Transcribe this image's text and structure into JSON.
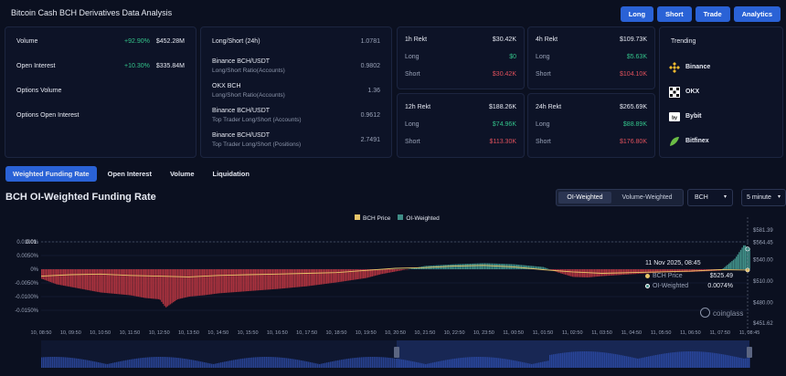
{
  "header": {
    "title": "Bitcoin Cash BCH Derivatives Data Analysis",
    "buttons": [
      "Long",
      "Short",
      "Trade",
      "Analytics"
    ]
  },
  "overview": {
    "rows": [
      {
        "label": "Volume",
        "change": "+92.90%",
        "value": "$452.28M"
      },
      {
        "label": "Open Interest",
        "change": "+10.30%",
        "value": "$335.84M"
      },
      {
        "label": "Options Volume",
        "change": "",
        "value": ""
      },
      {
        "label": "Options Open Interest",
        "change": "",
        "value": ""
      }
    ]
  },
  "ratios": {
    "rows": [
      {
        "label": "Long/Short (24h)",
        "sub": "",
        "value": "1.0781"
      },
      {
        "label": "Binance BCH/USDT",
        "sub": "Long/Short Ratio(Accounts)",
        "value": "0.9802"
      },
      {
        "label": "OKX BCH",
        "sub": "Long/Short Ratio(Accounts)",
        "value": "1.36"
      },
      {
        "label": "Binance BCH/USDT",
        "sub": "Top Trader Long/Short (Accounts)",
        "value": "0.9612"
      },
      {
        "label": "Binance BCH/USDT",
        "sub": "Top Trader Long/Short (Positions)",
        "value": "2.7491"
      }
    ]
  },
  "rekt": [
    {
      "title": "1h Rekt",
      "total": "$30.42K",
      "long_label": "Long",
      "long": "$0",
      "short_label": "Short",
      "short": "$30.42K"
    },
    {
      "title": "4h Rekt",
      "total": "$109.73K",
      "long_label": "Long",
      "long": "$5.63K",
      "short_label": "Short",
      "short": "$104.10K"
    },
    {
      "title": "12h Rekt",
      "total": "$188.26K",
      "long_label": "Long",
      "long": "$74.96K",
      "short_label": "Short",
      "short": "$113.30K"
    },
    {
      "title": "24h Rekt",
      "total": "$265.69K",
      "long_label": "Long",
      "long": "$88.89K",
      "short_label": "Short",
      "short": "$176.80K"
    }
  ],
  "trending": {
    "title": "Trending",
    "items": [
      {
        "name": "Binance",
        "icon": "binance-icon",
        "color": "#f3ba2f"
      },
      {
        "name": "OKX",
        "icon": "okx-icon",
        "color": "#ffffff"
      },
      {
        "name": "Bybit",
        "icon": "bybit-icon",
        "color": "#ffffff"
      },
      {
        "name": "Bitfinex",
        "icon": "bitfinex-icon",
        "color": "#6bbd45"
      }
    ]
  },
  "tabs": [
    "Weighted Funding Rate",
    "Open Interest",
    "Volume",
    "Liquidation"
  ],
  "chart_header": {
    "title": "BCH OI-Weighted Funding Rate",
    "toggle": [
      "OI-Weighted",
      "Volume-Weighted"
    ],
    "coin": "BCH",
    "interval": "5 minute"
  },
  "chart_data": {
    "type": "area",
    "legend": [
      "BCH Price",
      "OI-Weighted"
    ],
    "x_ticks": [
      "10, 08:50",
      "10, 09:50",
      "10, 10:50",
      "10, 11:50",
      "10, 12:50",
      "10, 13:50",
      "10, 14:50",
      "10, 15:50",
      "10, 16:50",
      "10, 17:50",
      "10, 18:50",
      "10, 19:50",
      "10, 20:50",
      "10, 21:50",
      "10, 22:50",
      "10, 23:50",
      "11, 00:50",
      "11, 01:50",
      "11, 02:50",
      "11, 03:50",
      "11, 04:50",
      "11, 05:50",
      "11, 06:50",
      "11, 07:50",
      "11, 08:45"
    ],
    "y_left_ticks": [
      "0.0100%",
      "0.01",
      "0.0050%",
      "0%",
      "-0.0050%",
      "-0.0100%",
      "-0.0150%"
    ],
    "y_left_values": [
      0.01,
      0.01,
      0.005,
      0,
      -0.005,
      -0.01,
      -0.015
    ],
    "y_right_ticks": [
      "$581.39",
      "$564.45",
      "$540.00",
      "$510.00",
      "$480.00",
      "$451.62"
    ],
    "y_right_values": [
      581.39,
      564.45,
      540,
      510,
      480,
      451.62
    ],
    "funding_series": {
      "name": "OI-Weighted",
      "x_hours": [
        0,
        0.5,
        1,
        1.5,
        2,
        2.5,
        3,
        3.5,
        4,
        4.2,
        4.4,
        4.6,
        5,
        5.5,
        6,
        7,
        8,
        9,
        10,
        11,
        11.5,
        12,
        12.5,
        13,
        14,
        15,
        16,
        17,
        17.5,
        18,
        18.5,
        19,
        20,
        20.5,
        21,
        22,
        23,
        23.5,
        23.8,
        24
      ],
      "values": [
        -0.0035,
        -0.0055,
        -0.0065,
        -0.0075,
        -0.0085,
        -0.009,
        -0.0095,
        -0.0105,
        -0.011,
        -0.014,
        -0.0125,
        -0.011,
        -0.01,
        -0.0095,
        -0.0088,
        -0.008,
        -0.0072,
        -0.0062,
        -0.0048,
        -0.0032,
        -0.0018,
        -0.0008,
        0.0002,
        0.0012,
        0.0018,
        0.0022,
        0.0018,
        0.0008,
        -0.0012,
        -0.0028,
        -0.003,
        -0.0025,
        -0.0018,
        -0.0015,
        -0.0012,
        -0.001,
        -0.0005,
        0.004,
        0.009,
        0.0074
      ]
    },
    "price_series": {
      "name": "BCH Price",
      "x_hours": [
        0,
        1,
        2,
        3,
        4,
        5,
        6,
        7,
        8,
        9,
        10,
        11,
        12,
        13,
        14,
        15,
        16,
        17,
        18,
        19,
        20,
        21,
        22,
        23,
        24
      ],
      "values": [
        517,
        519,
        520,
        518,
        517,
        516,
        518,
        519,
        520,
        521,
        522,
        525,
        528,
        529,
        531,
        532,
        530,
        526,
        523,
        521,
        522,
        523,
        524,
        526,
        525.49
      ]
    },
    "tooltip": {
      "time": "11 Nov 2025, 08:45",
      "rows": [
        {
          "label": "BCH Price",
          "value": "$525.49"
        },
        {
          "label": "OI-Weighted",
          "value": "0.0074%"
        }
      ]
    },
    "watermark": "coinglass"
  },
  "colors": {
    "accent": "#2a62d6",
    "positive": "#33c38a",
    "negative": "#e0515c",
    "funding_neg_fill": "#a8323e",
    "funding_pos_fill": "#3f8d86",
    "price_line": "#e8c56a"
  }
}
